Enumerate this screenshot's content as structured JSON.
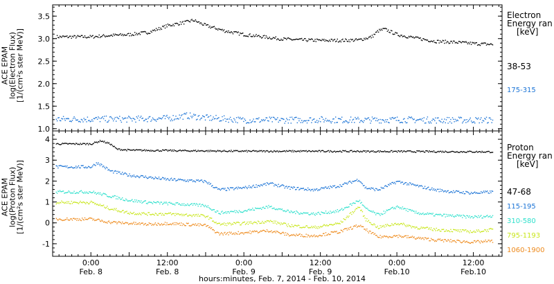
{
  "chart_data": [
    {
      "type": "scatter",
      "panel": "electron",
      "ylabel": [
        "ACE EPAM",
        "log(Electron Flux)",
        "[1/(cm²s ster MeV)]"
      ],
      "ylim": [
        0.95,
        3.75
      ],
      "yticks": [
        "1.0",
        "1.5",
        "2.0",
        "2.5",
        "3.0",
        "3.5"
      ],
      "legend": {
        "title": [
          "Electron",
          "Energy ran"
        ],
        "unit": "[keV]"
      },
      "series": [
        {
          "name": "38-53",
          "color": "#000000",
          "points": [
            [
              0,
              3.05
            ],
            [
              6,
              3.08
            ],
            [
              12,
              3.1
            ],
            [
              18,
              3.15
            ],
            [
              24,
              3.3
            ],
            [
              30,
              3.38
            ],
            [
              32,
              3.42
            ],
            [
              36,
              3.3
            ],
            [
              42,
              3.18
            ],
            [
              48,
              3.1
            ],
            [
              54,
              3.05
            ],
            [
              60,
              3.0
            ],
            [
              66,
              2.98
            ],
            [
              72,
              2.97
            ],
            [
              78,
              2.97
            ],
            [
              84,
              2.98
            ],
            [
              88,
              3.05
            ],
            [
              90,
              3.18
            ],
            [
              92,
              3.22
            ],
            [
              96,
              3.1
            ],
            [
              102,
              3.02
            ],
            [
              108,
              2.95
            ],
            [
              114,
              2.93
            ],
            [
              120,
              2.9
            ],
            [
              126,
              2.88
            ]
          ]
        },
        {
          "name": "175-315",
          "color": "#1a73d6",
          "points": [
            [
              0,
              1.22
            ],
            [
              12,
              1.22
            ],
            [
              24,
              1.24
            ],
            [
              30,
              1.3
            ],
            [
              36,
              1.25
            ],
            [
              48,
              1.2
            ],
            [
              60,
              1.2
            ],
            [
              72,
              1.21
            ],
            [
              84,
              1.2
            ],
            [
              96,
              1.21
            ],
            [
              108,
              1.2
            ],
            [
              120,
              1.2
            ],
            [
              126,
              1.2
            ]
          ]
        }
      ]
    },
    {
      "type": "scatter",
      "panel": "proton",
      "ylabel": [
        "ACE EPAM",
        "log(Proton Flux)",
        "[1/(cm²s ster MeV)]"
      ],
      "ylim": [
        -1.6,
        4.4
      ],
      "yticks": [
        "-1",
        "0",
        "1",
        "2",
        "3",
        "4"
      ],
      "legend": {
        "title": [
          "Proton",
          "Energy ran"
        ],
        "unit": "[keV]"
      },
      "series": [
        {
          "name": "47-68",
          "color": "#000000",
          "points": [
            [
              0,
              3.8
            ],
            [
              3,
              3.95
            ],
            [
              6,
              3.8
            ],
            [
              8,
              3.55
            ],
            [
              12,
              3.5
            ],
            [
              24,
              3.48
            ],
            [
              48,
              3.45
            ],
            [
              72,
              3.45
            ],
            [
              96,
              3.44
            ],
            [
              126,
              3.42
            ]
          ]
        },
        {
          "name": "115-195",
          "color": "#1a73d6",
          "points": [
            [
              0,
              2.7
            ],
            [
              2,
              2.9
            ],
            [
              6,
              2.5
            ],
            [
              12,
              2.3
            ],
            [
              18,
              2.2
            ],
            [
              24,
              2.1
            ],
            [
              30,
              2.05
            ],
            [
              36,
              2.0
            ],
            [
              40,
              1.6
            ],
            [
              48,
              1.7
            ],
            [
              56,
              1.9
            ],
            [
              62,
              1.7
            ],
            [
              70,
              1.6
            ],
            [
              78,
              1.8
            ],
            [
              84,
              2.1
            ],
            [
              86,
              1.7
            ],
            [
              90,
              1.6
            ],
            [
              96,
              2.0
            ],
            [
              102,
              1.8
            ],
            [
              108,
              1.6
            ],
            [
              114,
              1.5
            ],
            [
              120,
              1.45
            ],
            [
              126,
              1.5
            ]
          ]
        },
        {
          "name": "310-580",
          "color": "#2ee0cc",
          "points": [
            [
              0,
              1.5
            ],
            [
              6,
              1.3
            ],
            [
              12,
              1.1
            ],
            [
              18,
              1.0
            ],
            [
              24,
              0.95
            ],
            [
              30,
              0.9
            ],
            [
              36,
              0.85
            ],
            [
              40,
              0.5
            ],
            [
              48,
              0.6
            ],
            [
              56,
              0.8
            ],
            [
              62,
              0.55
            ],
            [
              70,
              0.45
            ],
            [
              78,
              0.6
            ],
            [
              84,
              1.1
            ],
            [
              86,
              0.7
            ],
            [
              90,
              0.4
            ],
            [
              96,
              0.8
            ],
            [
              102,
              0.5
            ],
            [
              108,
              0.4
            ],
            [
              114,
              0.35
            ],
            [
              120,
              0.3
            ],
            [
              126,
              0.35
            ]
          ]
        },
        {
          "name": "795-1193",
          "color": "#c8e61a",
          "points": [
            [
              0,
              1.0
            ],
            [
              6,
              0.7
            ],
            [
              12,
              0.5
            ],
            [
              18,
              0.45
            ],
            [
              24,
              0.45
            ],
            [
              30,
              0.4
            ],
            [
              36,
              0.35
            ],
            [
              40,
              -0.05
            ],
            [
              48,
              0.0
            ],
            [
              56,
              0.1
            ],
            [
              62,
              -0.1
            ],
            [
              70,
              -0.2
            ],
            [
              78,
              0.0
            ],
            [
              84,
              0.8
            ],
            [
              86,
              0.2
            ],
            [
              90,
              -0.2
            ],
            [
              96,
              0.0
            ],
            [
              102,
              -0.2
            ],
            [
              108,
              -0.3
            ],
            [
              114,
              -0.35
            ],
            [
              120,
              -0.4
            ],
            [
              126,
              -0.3
            ]
          ]
        },
        {
          "name": "1060-1900",
          "color": "#ee8a1c",
          "points": [
            [
              0,
              0.2
            ],
            [
              6,
              0.05
            ],
            [
              12,
              0.0
            ],
            [
              18,
              -0.05
            ],
            [
              24,
              0.0
            ],
            [
              30,
              -0.05
            ],
            [
              36,
              -0.1
            ],
            [
              40,
              -0.5
            ],
            [
              48,
              -0.45
            ],
            [
              56,
              -0.35
            ],
            [
              62,
              -0.55
            ],
            [
              70,
              -0.6
            ],
            [
              78,
              -0.4
            ],
            [
              84,
              -0.1
            ],
            [
              86,
              -0.3
            ],
            [
              90,
              -0.65
            ],
            [
              96,
              -0.6
            ],
            [
              102,
              -0.7
            ],
            [
              108,
              -0.8
            ],
            [
              114,
              -0.85
            ],
            [
              120,
              -0.9
            ],
            [
              126,
              -0.85
            ]
          ]
        }
      ]
    }
  ],
  "xaxis": {
    "range_hours": [
      -12,
      129
    ],
    "ticks": [
      {
        "h": 0,
        "time": "0:00",
        "date": "Feb. 8"
      },
      {
        "h": 24,
        "time": "12:00",
        "date": "Feb. 8"
      },
      {
        "h": 48,
        "time": "0:00",
        "date": "Feb. 9"
      },
      {
        "h": 72,
        "time": "12:00",
        "date": "Feb. 9"
      },
      {
        "h": 96,
        "time": "0:00",
        "date": "Feb.10"
      },
      {
        "h": 120,
        "time": "12:00",
        "date": "Feb.10"
      }
    ],
    "label": "hours:minutes, Feb. 7, 2014 - Feb. 10, 2014"
  }
}
